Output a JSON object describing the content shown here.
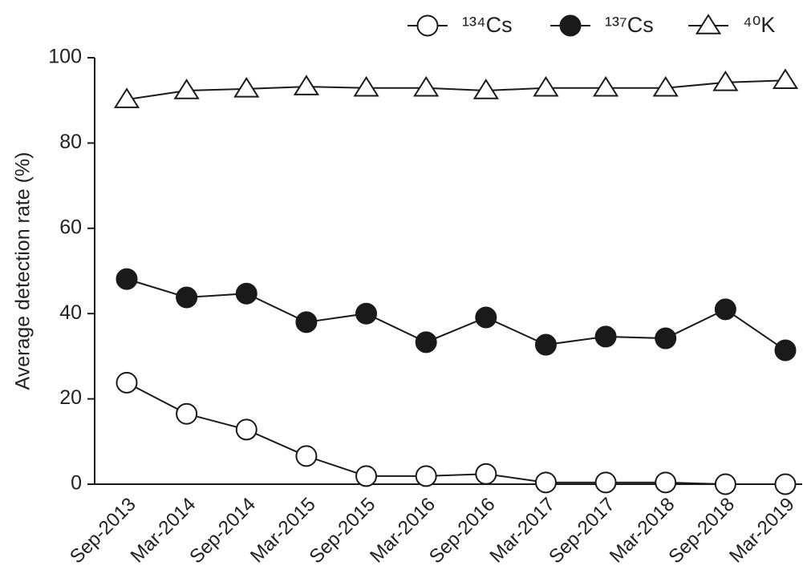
{
  "chart_data": {
    "type": "line",
    "y_label": "Average detection rate (%)",
    "categories": [
      "Sep-2013",
      "Mar-2014",
      "Sep-2014",
      "Mar-2015",
      "Sep-2015",
      "Mar-2016",
      "Sep-2016",
      "Mar-2017",
      "Sep-2017",
      "Mar-2018",
      "Sep-2018",
      "Mar-2019"
    ],
    "series": [
      {
        "name": "¹³⁴Cs",
        "color": "#1a1a1a",
        "marker": "circle",
        "marker_fill": "#ffffff",
        "values": [
          23.8,
          16.5,
          12.8,
          6.6,
          1.9,
          1.9,
          2.4,
          0.4,
          0.4,
          0.4,
          0,
          0
        ]
      },
      {
        "name": "¹³⁷Cs",
        "color": "#1a1a1a",
        "marker": "circle",
        "marker_fill": "#1a1a1a",
        "values": [
          48.1,
          43.8,
          44.7,
          38,
          40,
          33.3,
          39.1,
          32.7,
          34.6,
          34.2,
          41,
          31.4
        ]
      },
      {
        "name": "⁴⁰K",
        "color": "#1a1a1a",
        "marker": "triangle",
        "marker_fill": "#ffffff",
        "values": [
          90.2,
          92.3,
          92.7,
          93.2,
          92.9,
          92.9,
          92.3,
          92.9,
          92.9,
          92.9,
          94.2,
          94.7
        ]
      }
    ],
    "ylim": [
      0,
      100
    ],
    "yticks": [
      0,
      20,
      40,
      60,
      80,
      100
    ],
    "legend": "top-right"
  }
}
